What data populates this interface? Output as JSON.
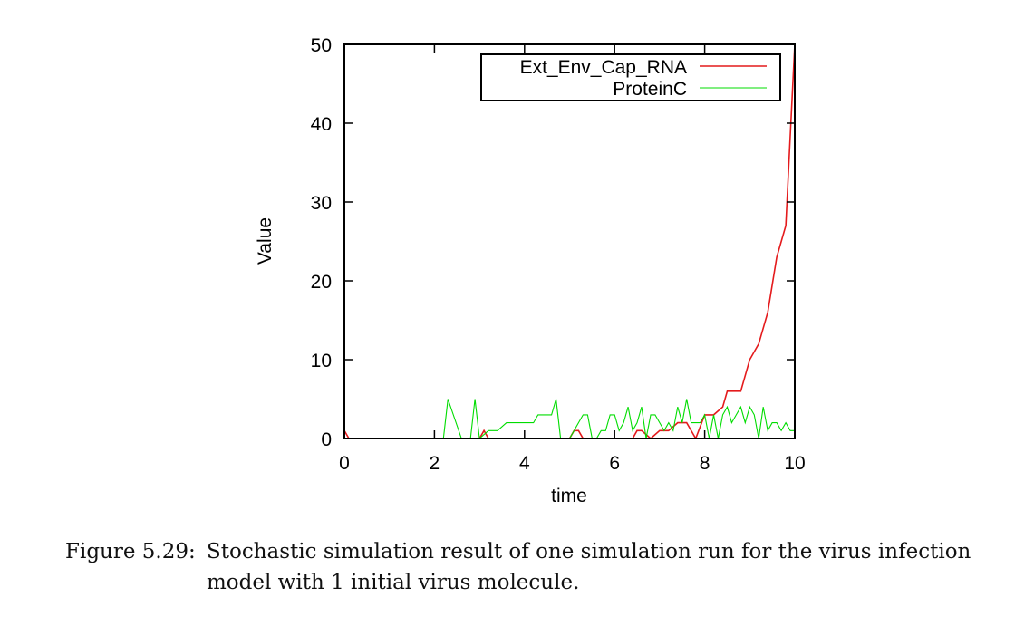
{
  "chart_data": {
    "type": "line",
    "xlabel": "time",
    "ylabel": "Value",
    "xlim": [
      0,
      10
    ],
    "ylim": [
      0,
      50
    ],
    "xticks": [
      0,
      2,
      4,
      6,
      8,
      10
    ],
    "yticks": [
      0,
      10,
      20,
      30,
      40,
      50
    ],
    "grid": false,
    "legend_position": "top-right",
    "series": [
      {
        "name": "Ext_Env_Cap_RNA",
        "color": "#e41a1c",
        "x": [
          0,
          0.1,
          0.2,
          0.4,
          0.6,
          0.8,
          1.0,
          1.2,
          1.4,
          1.6,
          1.8,
          2.0,
          2.2,
          2.4,
          2.6,
          2.8,
          3.0,
          3.1,
          3.2,
          3.4,
          3.6,
          3.8,
          4.0,
          4.2,
          4.4,
          4.6,
          4.8,
          5.0,
          5.1,
          5.2,
          5.3,
          5.4,
          5.6,
          5.8,
          6.0,
          6.2,
          6.4,
          6.5,
          6.6,
          6.8,
          7.0,
          7.2,
          7.4,
          7.6,
          7.8,
          8.0,
          8.2,
          8.4,
          8.5,
          8.6,
          8.8,
          9.0,
          9.2,
          9.4,
          9.6,
          9.8,
          10.0
        ],
        "y": [
          1,
          0,
          0,
          0,
          0,
          0,
          0,
          0,
          0,
          0,
          0,
          0,
          0,
          0,
          0,
          0,
          0,
          1,
          0,
          0,
          0,
          0,
          0,
          0,
          0,
          0,
          0,
          0,
          1,
          1,
          0,
          0,
          0,
          0,
          0,
          0,
          0,
          1,
          1,
          0,
          1,
          1,
          2,
          2,
          0,
          3,
          3,
          4,
          6,
          6,
          6,
          10,
          12,
          16,
          23,
          27,
          50
        ]
      },
      {
        "name": "ProteinC",
        "color": "#00dd00",
        "x": [
          0,
          1.0,
          2.0,
          2.1,
          2.2,
          2.3,
          2.6,
          2.7,
          2.8,
          2.9,
          3.0,
          3.2,
          3.4,
          3.6,
          3.8,
          4.0,
          4.2,
          4.3,
          4.4,
          4.5,
          4.6,
          4.7,
          4.8,
          4.9,
          5.0,
          5.1,
          5.2,
          5.3,
          5.4,
          5.5,
          5.6,
          5.7,
          5.8,
          5.9,
          6.0,
          6.1,
          6.2,
          6.3,
          6.4,
          6.5,
          6.6,
          6.7,
          6.8,
          6.9,
          7.0,
          7.1,
          7.2,
          7.3,
          7.4,
          7.5,
          7.6,
          7.7,
          7.8,
          7.9,
          8.0,
          8.1,
          8.2,
          8.3,
          8.4,
          8.5,
          8.6,
          8.7,
          8.8,
          8.9,
          9.0,
          9.1,
          9.2,
          9.3,
          9.4,
          9.5,
          9.6,
          9.7,
          9.8,
          9.9,
          10.0
        ],
        "y": [
          0,
          0,
          0,
          0,
          0,
          5,
          0,
          0,
          0,
          5,
          0,
          1,
          1,
          2,
          2,
          2,
          2,
          3,
          3,
          3,
          3,
          5,
          0,
          0,
          0,
          1,
          2,
          3,
          3,
          0,
          0,
          1,
          1,
          3,
          3,
          1,
          2,
          4,
          1,
          2,
          4,
          0,
          3,
          3,
          2,
          1,
          2,
          1,
          4,
          2,
          5,
          2,
          2,
          2,
          3,
          0,
          3,
          0,
          3,
          4,
          2,
          3,
          4,
          2,
          4,
          3,
          0,
          4,
          1,
          2,
          2,
          1,
          2,
          1,
          1
        ]
      }
    ]
  },
  "caption": {
    "label": "Figure 5.29:",
    "text": "Stochastic simulation result of one simulation run for the virus infection model with 1 initial virus molecule."
  }
}
